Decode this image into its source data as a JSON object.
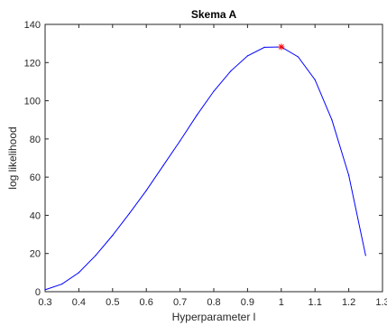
{
  "chart_data": {
    "type": "line",
    "title": "Skema A",
    "xlabel": "Hyperparameter l",
    "ylabel": "log likelihood",
    "xlim": [
      0.3,
      1.3
    ],
    "ylim": [
      0,
      140
    ],
    "xticks": [
      "0.3",
      "0.4",
      "0.5",
      "0.6",
      "0.7",
      "0.8",
      "0.9",
      "1",
      "1.1",
      "1.2",
      "1.3"
    ],
    "yticks": [
      "0",
      "20",
      "40",
      "60",
      "80",
      "100",
      "120",
      "140"
    ],
    "grid": false,
    "series": [
      {
        "color": "#0000ff",
        "x": [
          0.3,
          0.35,
          0.4,
          0.45,
          0.5,
          0.55,
          0.6,
          0.65,
          0.7,
          0.75,
          0.8,
          0.85,
          0.9,
          0.95,
          1.0,
          1.05,
          1.1,
          1.15,
          1.2,
          1.25
        ],
        "y": [
          1,
          4,
          10,
          19,
          29.5,
          41,
          53,
          66,
          79,
          92.5,
          105,
          115.5,
          123.5,
          128,
          128.2,
          123,
          111,
          90,
          61,
          19
        ]
      }
    ],
    "marker": {
      "x": 1.0,
      "y": 128.2,
      "symbol": "*",
      "color": "#ff0000"
    }
  }
}
